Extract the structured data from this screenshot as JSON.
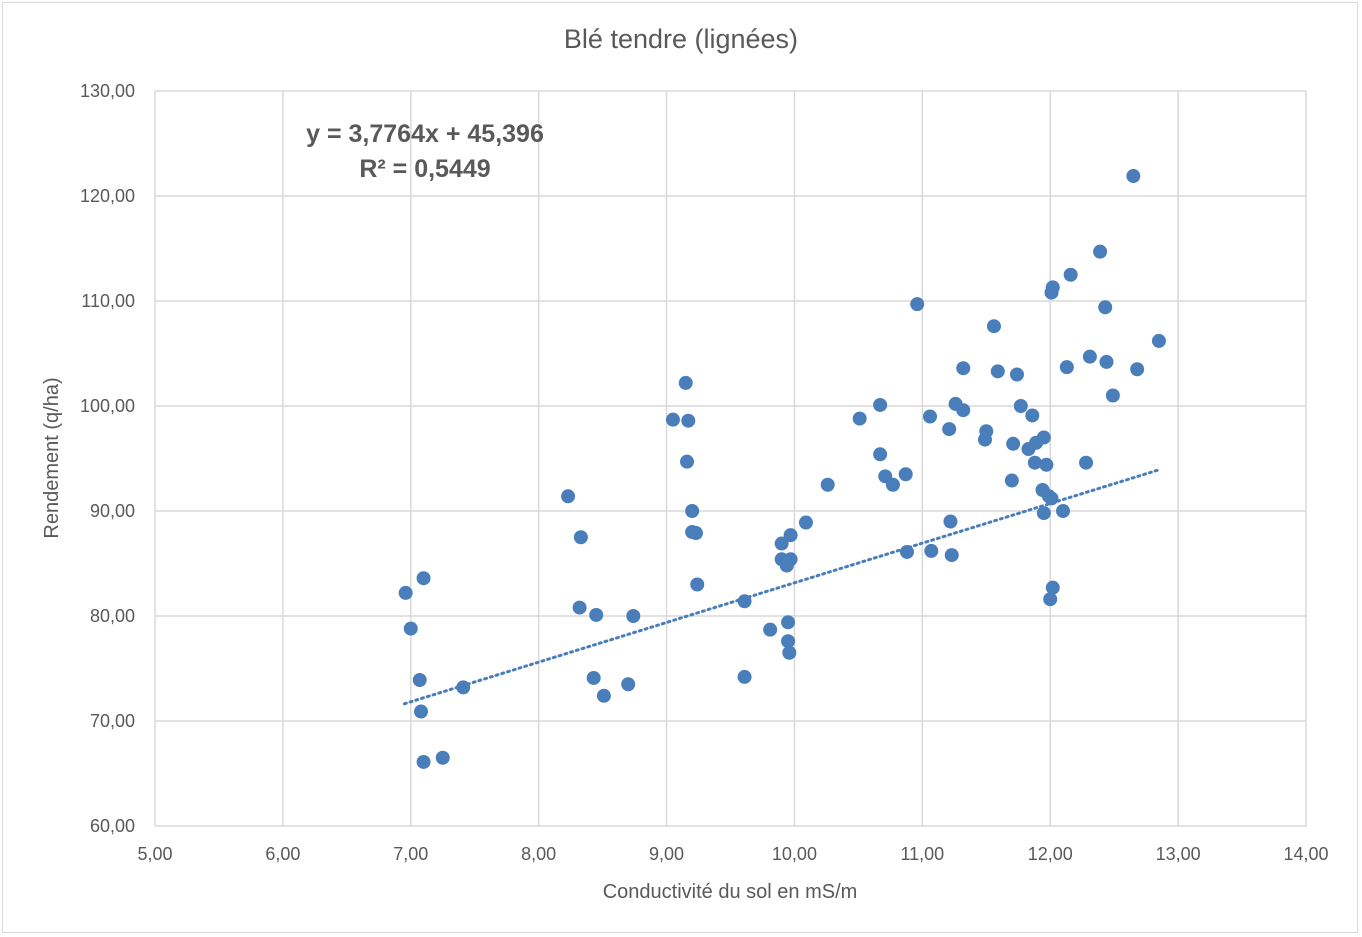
{
  "chart_data": {
    "type": "scatter",
    "title": "Blé tendre (lignées)",
    "xlabel": "Conductivité du sol en mS/m",
    "ylabel": "Rendement (q/ha)",
    "xlim": [
      5,
      14
    ],
    "ylim": [
      60,
      130
    ],
    "x_ticks": [
      "5,00",
      "6,00",
      "7,00",
      "8,00",
      "9,00",
      "10,00",
      "11,00",
      "12,00",
      "13,00",
      "14,00"
    ],
    "y_ticks": [
      "60,00",
      "70,00",
      "80,00",
      "90,00",
      "100,00",
      "110,00",
      "120,00",
      "130,00"
    ],
    "grid": true,
    "marker_color": "#4a7ebb",
    "trendline": {
      "type": "linear",
      "slope": 3.7764,
      "intercept": 45.396,
      "x_range": [
        6.95,
        12.85
      ],
      "style": "dotted",
      "equation_label": "y = 3,7764x + 45,396",
      "r2_label": "R² = 0,5449"
    },
    "series": [
      {
        "points": [
          [
            6.96,
            82.2
          ],
          [
            7.0,
            78.8
          ],
          [
            7.1,
            83.6
          ],
          [
            7.07,
            73.9
          ],
          [
            7.08,
            70.9
          ],
          [
            7.1,
            66.1
          ],
          [
            7.25,
            66.5
          ],
          [
            7.41,
            73.2
          ],
          [
            8.23,
            91.4
          ],
          [
            8.33,
            87.5
          ],
          [
            8.32,
            80.8
          ],
          [
            8.45,
            80.1
          ],
          [
            8.43,
            74.1
          ],
          [
            8.51,
            72.4
          ],
          [
            8.7,
            73.5
          ],
          [
            8.74,
            80.0
          ],
          [
            9.05,
            98.7
          ],
          [
            9.15,
            102.2
          ],
          [
            9.17,
            98.6
          ],
          [
            9.16,
            94.7
          ],
          [
            9.2,
            90.0
          ],
          [
            9.2,
            88.0
          ],
          [
            9.23,
            87.9
          ],
          [
            9.24,
            83.0
          ],
          [
            9.61,
            81.4
          ],
          [
            9.61,
            74.2
          ],
          [
            9.81,
            78.7
          ],
          [
            9.9,
            86.9
          ],
          [
            9.9,
            85.4
          ],
          [
            9.94,
            84.8
          ],
          [
            9.97,
            85.4
          ],
          [
            9.97,
            87.7
          ],
          [
            9.95,
            79.4
          ],
          [
            9.95,
            77.6
          ],
          [
            9.96,
            76.5
          ],
          [
            10.09,
            88.9
          ],
          [
            10.26,
            92.5
          ],
          [
            10.51,
            98.8
          ],
          [
            10.67,
            100.1
          ],
          [
            10.67,
            95.4
          ],
          [
            10.71,
            93.3
          ],
          [
            10.77,
            92.5
          ],
          [
            10.87,
            93.5
          ],
          [
            10.88,
            86.1
          ],
          [
            10.96,
            109.7
          ],
          [
            11.06,
            99.0
          ],
          [
            11.07,
            86.2
          ],
          [
            11.21,
            97.8
          ],
          [
            11.22,
            89.0
          ],
          [
            11.23,
            85.8
          ],
          [
            11.26,
            100.2
          ],
          [
            11.32,
            103.6
          ],
          [
            11.32,
            99.6
          ],
          [
            11.5,
            97.6
          ],
          [
            11.49,
            96.8
          ],
          [
            11.56,
            107.6
          ],
          [
            11.59,
            103.3
          ],
          [
            11.7,
            92.9
          ],
          [
            11.71,
            96.4
          ],
          [
            11.74,
            103.0
          ],
          [
            11.77,
            100.0
          ],
          [
            11.83,
            95.9
          ],
          [
            11.86,
            99.1
          ],
          [
            11.88,
            94.6
          ],
          [
            11.89,
            96.5
          ],
          [
            11.95,
            97.0
          ],
          [
            11.94,
            92.0
          ],
          [
            11.95,
            89.8
          ],
          [
            11.97,
            94.4
          ],
          [
            11.99,
            91.4
          ],
          [
            12.01,
            91.2
          ],
          [
            12.0,
            81.6
          ],
          [
            12.02,
            82.7
          ],
          [
            12.01,
            110.8
          ],
          [
            12.02,
            111.3
          ],
          [
            12.1,
            90.0
          ],
          [
            12.13,
            103.7
          ],
          [
            12.16,
            112.5
          ],
          [
            12.28,
            94.6
          ],
          [
            12.31,
            104.7
          ],
          [
            12.39,
            114.7
          ],
          [
            12.43,
            109.4
          ],
          [
            12.44,
            104.2
          ],
          [
            12.49,
            101.0
          ],
          [
            12.65,
            121.9
          ],
          [
            12.68,
            103.5
          ],
          [
            12.85,
            106.2
          ]
        ]
      }
    ]
  }
}
